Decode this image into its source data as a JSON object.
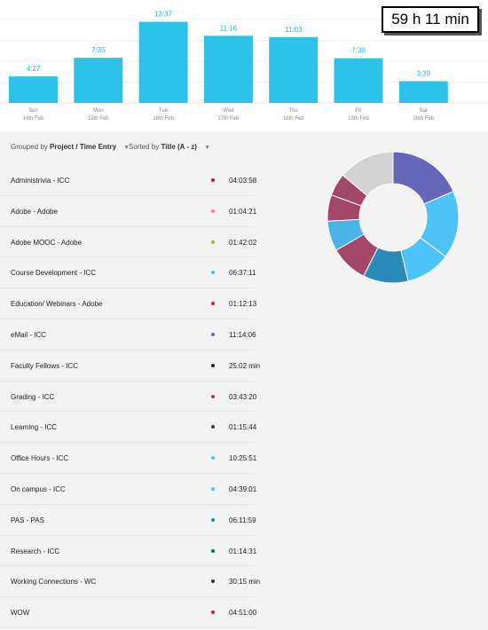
{
  "total": "59 h 11 min",
  "chart_data": {
    "type": "bar",
    "categories": [
      "Sun",
      "Mon",
      "Tue",
      "Wed",
      "Thu",
      "Fri",
      "Sat"
    ],
    "dates": [
      "14th Feb",
      "15th Feb",
      "16th Feb",
      "17th Feb",
      "18th Feb",
      "19th Feb",
      "20th Feb"
    ],
    "value_labels": [
      "4:27",
      "7:35",
      "13:37",
      "11:16",
      "11:03",
      "7:30",
      "3:39"
    ],
    "values": [
      4.45,
      7.58,
      13.62,
      11.27,
      11.05,
      7.5,
      3.65
    ],
    "ylim": [
      0,
      14
    ],
    "bar_color": "#2ec2e8",
    "label_color": "#2aaed6"
  },
  "toolbar": {
    "grouped_prefix": "Grouped by",
    "grouped_value": "Project / Time Entry",
    "sorted_prefix": "Sorted by",
    "sorted_value": "Title (A - z)"
  },
  "entries": [
    {
      "title": "Administrivia - ICC",
      "duration": "04:03:58",
      "color": "#c0143c"
    },
    {
      "title": "Adobe - Adobe",
      "duration": "01:04:21",
      "color": "#ff7fa0"
    },
    {
      "title": "Adobe MOOC - Adobe",
      "duration": "01:42:02",
      "color": "#8bc34a"
    },
    {
      "title": "Course Development - ICC",
      "duration": "06:37:11",
      "color": "#4fc3f7"
    },
    {
      "title": "Education/ Webinars - Adobe",
      "duration": "01:12:13",
      "color": "#c62828"
    },
    {
      "title": "eMail - ICC",
      "duration": "11:14:06",
      "color": "#5c6bc0"
    },
    {
      "title": "Faculty Fellows - ICC",
      "duration": "25:02 min",
      "color": "#1a2b3c"
    },
    {
      "title": "Grading - ICC",
      "duration": "03:43:20",
      "color": "#a83a5a"
    },
    {
      "title": "Learning - ICC",
      "duration": "01:15:44",
      "color": "#37474f"
    },
    {
      "title": "Office Hours - ICC",
      "duration": "10:25:51",
      "color": "#4fc3f7"
    },
    {
      "title": "On campus - ICC",
      "duration": "04:39:01",
      "color": "#4fc3f7"
    },
    {
      "title": "PAS - PAS",
      "duration": "06:11:59",
      "color": "#1e88c8"
    },
    {
      "title": "Research - ICC",
      "duration": "01:14:31",
      "color": "#00695c"
    },
    {
      "title": "Working Connections - WC",
      "duration": "30:15 min",
      "color": "#263238"
    },
    {
      "title": "WOW",
      "duration": "04:51:00",
      "color": "#c2185b"
    }
  ],
  "donut": [
    {
      "value": 20,
      "color": "#6667b8"
    },
    {
      "value": 18,
      "color": "#4fc3f7"
    },
    {
      "value": 12,
      "color": "#4fc3f7"
    },
    {
      "value": 12,
      "color": "#2b8bb8"
    },
    {
      "value": 10,
      "color": "#a3476a"
    },
    {
      "value": 8,
      "color": "#4ab3e8"
    },
    {
      "value": 7,
      "color": "#a3476a"
    },
    {
      "value": 6,
      "color": "#a3476a"
    },
    {
      "value": 15,
      "color": "#d3d3d3"
    }
  ]
}
